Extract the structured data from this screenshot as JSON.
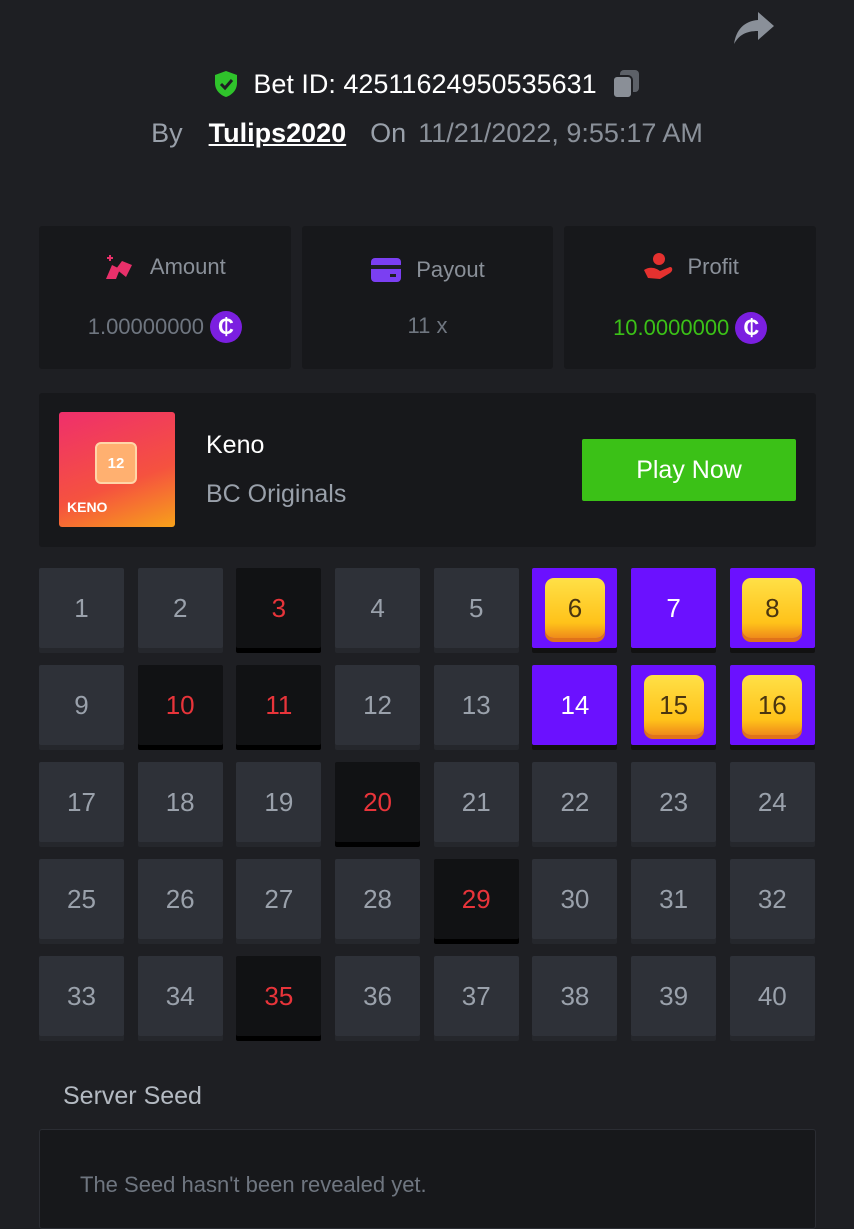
{
  "header": {
    "share_icon": "share-arrow-icon",
    "bet_id_label": "Bet ID: 42511624950535631",
    "verified_icon": "shield-check-icon",
    "copy_icon": "copy-icon",
    "by_label": "By",
    "username": "Tulips2020",
    "on_label": "On",
    "date": "11/21/2022, 9:55:17 AM"
  },
  "stats": {
    "amount": {
      "label": "Amount",
      "value": "1.00000000",
      "icon": "coins-icon"
    },
    "payout": {
      "label": "Payout",
      "value": "11 x",
      "icon": "card-icon"
    },
    "profit": {
      "label": "Profit",
      "value": "10.0000000",
      "icon": "hand-profit-icon"
    },
    "coin_symbol": "₵",
    "colors": {
      "profit": "#3bc117",
      "coin": "#7b1fe0"
    }
  },
  "game": {
    "name": "Keno",
    "provider": "BC Originals",
    "play_label": "Play Now",
    "thumb_label": "KENO",
    "thumb_number": "12"
  },
  "tiles": [
    {
      "n": "1",
      "s": "normal"
    },
    {
      "n": "2",
      "s": "normal"
    },
    {
      "n": "3",
      "s": "hit"
    },
    {
      "n": "4",
      "s": "normal"
    },
    {
      "n": "5",
      "s": "normal"
    },
    {
      "n": "6",
      "s": "gem"
    },
    {
      "n": "7",
      "s": "sel"
    },
    {
      "n": "8",
      "s": "gem"
    },
    {
      "n": "9",
      "s": "normal"
    },
    {
      "n": "10",
      "s": "hit"
    },
    {
      "n": "11",
      "s": "hit"
    },
    {
      "n": "12",
      "s": "normal"
    },
    {
      "n": "13",
      "s": "normal"
    },
    {
      "n": "14",
      "s": "sel"
    },
    {
      "n": "15",
      "s": "gem"
    },
    {
      "n": "16",
      "s": "gem"
    },
    {
      "n": "17",
      "s": "normal"
    },
    {
      "n": "18",
      "s": "normal"
    },
    {
      "n": "19",
      "s": "normal"
    },
    {
      "n": "20",
      "s": "hit"
    },
    {
      "n": "21",
      "s": "normal"
    },
    {
      "n": "22",
      "s": "normal"
    },
    {
      "n": "23",
      "s": "normal"
    },
    {
      "n": "24",
      "s": "normal"
    },
    {
      "n": "25",
      "s": "normal"
    },
    {
      "n": "26",
      "s": "normal"
    },
    {
      "n": "27",
      "s": "normal"
    },
    {
      "n": "28",
      "s": "normal"
    },
    {
      "n": "29",
      "s": "hit"
    },
    {
      "n": "30",
      "s": "normal"
    },
    {
      "n": "31",
      "s": "normal"
    },
    {
      "n": "32",
      "s": "normal"
    },
    {
      "n": "33",
      "s": "normal"
    },
    {
      "n": "34",
      "s": "normal"
    },
    {
      "n": "35",
      "s": "hit"
    },
    {
      "n": "36",
      "s": "normal"
    },
    {
      "n": "37",
      "s": "normal"
    },
    {
      "n": "38",
      "s": "normal"
    },
    {
      "n": "39",
      "s": "normal"
    },
    {
      "n": "40",
      "s": "normal"
    }
  ],
  "seed": {
    "label": "Server Seed",
    "text": "The Seed hasn't been revealed yet."
  }
}
